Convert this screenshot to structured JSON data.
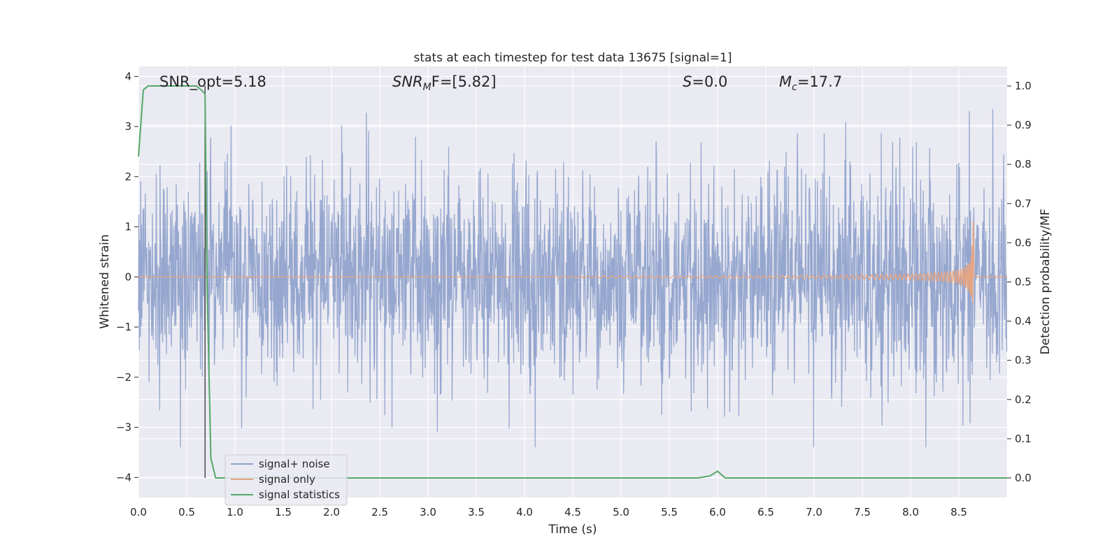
{
  "chart_data": {
    "type": "line",
    "title": "stats at each timestep for test data 13675 [signal=1]",
    "xlabel": "Time (s)",
    "ylabel": "Whitened strain",
    "y2label": "Detection probability/MF",
    "xlim": [
      0.0,
      9.0
    ],
    "ylim": [
      -4.4,
      4.2
    ],
    "y2lim": [
      -0.05,
      1.05
    ],
    "xticks": [
      "0.0",
      "0.5",
      "1.0",
      "1.5",
      "2.0",
      "2.5",
      "3.0",
      "3.5",
      "4.0",
      "4.5",
      "5.0",
      "5.5",
      "6.0",
      "6.5",
      "7.0",
      "7.5",
      "8.0",
      "8.5"
    ],
    "yticks": [
      "−4",
      "−3",
      "−2",
      "−1",
      "0",
      "1",
      "2",
      "3",
      "4"
    ],
    "y2ticks": [
      "0.0",
      "0.1",
      "0.2",
      "0.3",
      "0.4",
      "0.5",
      "0.6",
      "0.7",
      "0.8",
      "0.9",
      "1.0"
    ],
    "grid": true,
    "legend_position": "lower-left",
    "annotations": {
      "snr_opt": "SNR_opt=5.18",
      "snr_mf_prefix": "SNR",
      "snr_mf_sub": "M",
      "snr_mf_rest": "F=[5.82]",
      "s_var": "S",
      "s_rest": "=0.0",
      "mc_var": "M",
      "mc_sub": "c",
      "mc_rest": "=17.7"
    },
    "marker_time": 0.69,
    "series": [
      {
        "name": "signal+ noise",
        "color": "#8da0cb",
        "axis": "left",
        "description_values": "whitened noise spanning roughly −3.4 to 3.8 across 0–9 s"
      },
      {
        "name": "signal only",
        "color": "#e5a482",
        "axis": "left",
        "chirp": {
          "start": 4.3,
          "merger": 8.65,
          "peak_amplitude": 1.1
        }
      },
      {
        "name": "signal statistics",
        "color": "#55a868",
        "axis": "right",
        "x": [
          0.0,
          0.05,
          0.1,
          0.2,
          0.4,
          0.6,
          0.65,
          0.69,
          0.71,
          0.75,
          0.8,
          1.0,
          2.0,
          3.0,
          4.0,
          5.0,
          5.8,
          5.92,
          6.0,
          6.08,
          6.2,
          7.0,
          8.0,
          9.0
        ],
        "y": [
          0.82,
          0.99,
          1.0,
          1.0,
          1.0,
          1.0,
          0.99,
          0.98,
          0.5,
          0.05,
          0.0,
          0.0,
          0.0,
          0.0,
          0.0,
          0.0,
          0.0,
          0.005,
          0.017,
          0.0,
          0.0,
          0.0,
          0.0,
          0.0
        ]
      }
    ]
  }
}
